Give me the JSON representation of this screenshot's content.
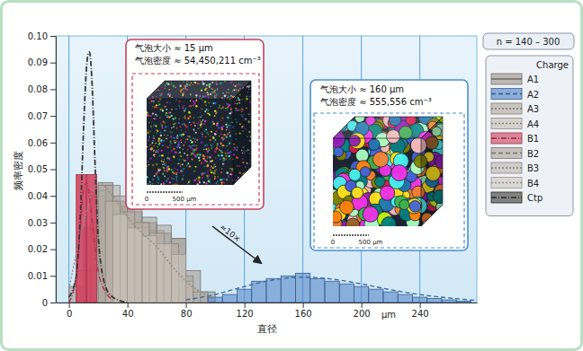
{
  "chart_data": {
    "type": "histogram",
    "x_title": "直径",
    "x_unit": "μm",
    "y_title": "频率密度",
    "xlim": [
      -9,
      279
    ],
    "xticks": [
      0,
      40,
      80,
      120,
      160,
      200,
      240
    ],
    "ylim": [
      0,
      0.1
    ],
    "yticks": [
      0,
      0.01,
      0.02,
      0.03,
      0.04,
      0.05,
      0.06,
      0.07,
      0.08,
      0.09,
      {
        "value": 0.1,
        "label": "0.10"
      }
    ],
    "grid": "x",
    "legend": "right",
    "legend_title": "Charge",
    "sample_note": "n = 140 – 300",
    "insets": [
      {
        "lines": [
          "气泡大小 ≈ 15 μm",
          "气泡密度 ≈ 54,450,211 cm⁻³"
        ],
        "scale_labels": [
          "0",
          "500 μm"
        ],
        "color": "#c8405c"
      },
      {
        "lines": [
          "气泡大小 ≈ 160 μm",
          "气泡密度 ≈ 555,556 cm⁻³"
        ],
        "scale_labels": [
          "0",
          "500 μm"
        ],
        "color": "#4a90d0"
      }
    ],
    "arrow_label": "≈10×",
    "series": [
      {
        "name": "A1",
        "type": "histogram",
        "color": "#9c948c",
        "line_style": "solid",
        "bins": [
          0,
          10,
          20,
          30,
          40,
          50,
          60,
          70,
          80,
          90,
          100
        ],
        "values": [
          0.006,
          0.028,
          0.045,
          0.038,
          0.034,
          0.03,
          0.026,
          0.024,
          0.012,
          0.004
        ]
      },
      {
        "name": "A2",
        "type": "histogram",
        "color": "#4a7fc4",
        "line_style": "dashed",
        "bins": [
          95,
          105,
          115,
          125,
          135,
          145,
          155,
          165,
          175,
          185,
          195,
          205,
          215,
          225,
          235,
          245,
          255,
          265,
          275
        ],
        "values": [
          0.002,
          0.003,
          0.005,
          0.008,
          0.009,
          0.01,
          0.011,
          0.009,
          0.008,
          0.007,
          0.006,
          0.005,
          0.004,
          0.003,
          0.002,
          0.0015,
          0.001,
          0.0005
        ],
        "curve_x": [
          80,
          100,
          120,
          140,
          160,
          180,
          200,
          220,
          240,
          260,
          278
        ],
        "curve_values": [
          0.001,
          0.003,
          0.006,
          0.0085,
          0.0095,
          0.0088,
          0.007,
          0.0048,
          0.003,
          0.0017,
          0.0008
        ]
      },
      {
        "name": "A3",
        "type": "histogram",
        "color": "#b0a79c",
        "line_style": "dotted",
        "bins": [
          5,
          15,
          25,
          35,
          45,
          55,
          65,
          75,
          85,
          95
        ],
        "values": [
          0.012,
          0.04,
          0.044,
          0.036,
          0.03,
          0.027,
          0.022,
          0.01,
          0.004
        ],
        "curve_x": [
          0,
          10,
          20,
          30,
          40,
          50,
          60,
          70,
          80,
          90,
          100
        ],
        "curve_values": [
          0.005,
          0.03,
          0.045,
          0.04,
          0.032,
          0.026,
          0.021,
          0.014,
          0.008,
          0.004,
          0.002
        ]
      },
      {
        "name": "A4",
        "type": "histogram",
        "color": "#c4bcb2",
        "line_style": "dotted",
        "bins": [
          15,
          25,
          35,
          45,
          55,
          65,
          75,
          85
        ],
        "values": [
          0.042,
          0.037,
          0.031,
          0.028,
          0.02,
          0.015,
          0.008
        ]
      },
      {
        "name": "B1",
        "type": "histogram",
        "color": "#d23c5a",
        "line_style": "dashdot",
        "bins": [
          5,
          12,
          19
        ],
        "values": [
          0.048,
          0.048
        ],
        "curve_x": [
          0,
          5,
          8,
          10,
          12,
          14,
          16,
          18,
          20,
          25,
          30
        ],
        "curve_values": [
          0,
          0.01,
          0.03,
          0.042,
          0.045,
          0.04,
          0.03,
          0.02,
          0.012,
          0.004,
          0.001
        ]
      },
      {
        "name": "B2",
        "type": "histogram",
        "color": "#a8a098",
        "line_style": "dashed",
        "bins": [
          20,
          30,
          40,
          50,
          60,
          70,
          80
        ],
        "values": [
          0.044,
          0.04,
          0.035,
          0.032,
          0.029,
          0.024
        ]
      },
      {
        "name": "B3",
        "type": "histogram",
        "color": "#bdb5ab",
        "line_style": "dotted",
        "bins": [
          25,
          35,
          45,
          55,
          65,
          75
        ],
        "values": [
          0.038,
          0.034,
          0.03,
          0.026,
          0.022
        ]
      },
      {
        "name": "B4",
        "type": "histogram",
        "color": "#cfc8bf",
        "line_style": "dotted",
        "bins": [
          30,
          40,
          50,
          60,
          70,
          80
        ],
        "values": [
          0.033,
          0.028,
          0.025,
          0.022,
          0.018
        ]
      },
      {
        "name": "Ctp",
        "type": "line",
        "color": "#3a3633",
        "line_style": "dashdot",
        "x": [
          0,
          5,
          8,
          10,
          12,
          13,
          14,
          15,
          16,
          18,
          20,
          25,
          30,
          40
        ],
        "values": [
          0.002,
          0.01,
          0.035,
          0.065,
          0.088,
          0.093,
          0.094,
          0.09,
          0.08,
          0.05,
          0.025,
          0.006,
          0.002,
          0
        ]
      }
    ]
  }
}
